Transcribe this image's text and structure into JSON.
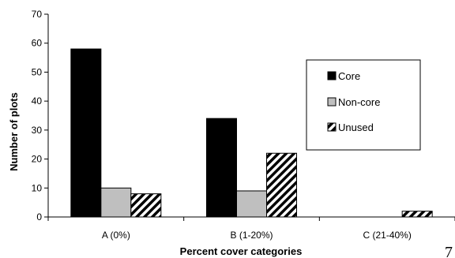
{
  "chart_data": {
    "type": "bar",
    "title": "",
    "xlabel": "Percent cover categories",
    "ylabel": "Number of plots",
    "categories": [
      "A (0%)",
      "B (1-20%)",
      "C (21-40%)"
    ],
    "ylim": [
      0,
      70
    ],
    "yticks": [
      0,
      10,
      20,
      30,
      40,
      50,
      60,
      70
    ],
    "grid": false,
    "legend_position": "top-right",
    "series": [
      {
        "name": "Core",
        "values": [
          58,
          34,
          0
        ],
        "fill": "solid",
        "color": "#000000"
      },
      {
        "name": "Non-core",
        "values": [
          10,
          9,
          0
        ],
        "fill": "solid",
        "color": "#bfbfbf"
      },
      {
        "name": "Unused",
        "values": [
          8,
          22,
          2
        ],
        "fill": "diagonal-stripes",
        "color": "#000000"
      }
    ]
  },
  "page_number_fragment": "7"
}
